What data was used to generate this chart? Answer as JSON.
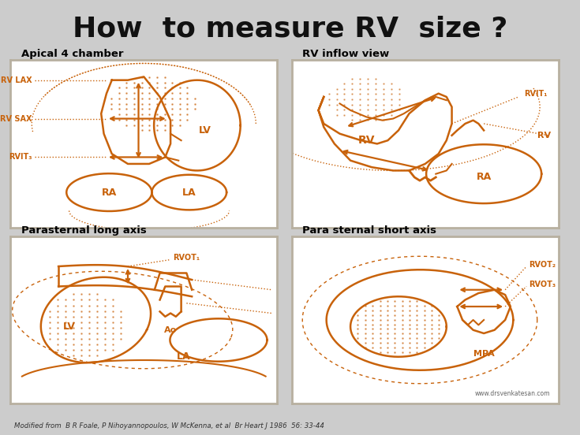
{
  "title": "How  to measure RV  size ?",
  "title_color": "#111111",
  "title_fontsize": 26,
  "bg_color": "#cccccc",
  "panel_bg": "#ffffff",
  "panel_border": "#d0ccc4",
  "orange": "#c8620a",
  "footnote": "Modified from  B R Foale, P Nihoyannopoulos, W McKenna, et al  Br Heart J 1986  56: 33-44",
  "website": "www.drsvenkatesan.com"
}
